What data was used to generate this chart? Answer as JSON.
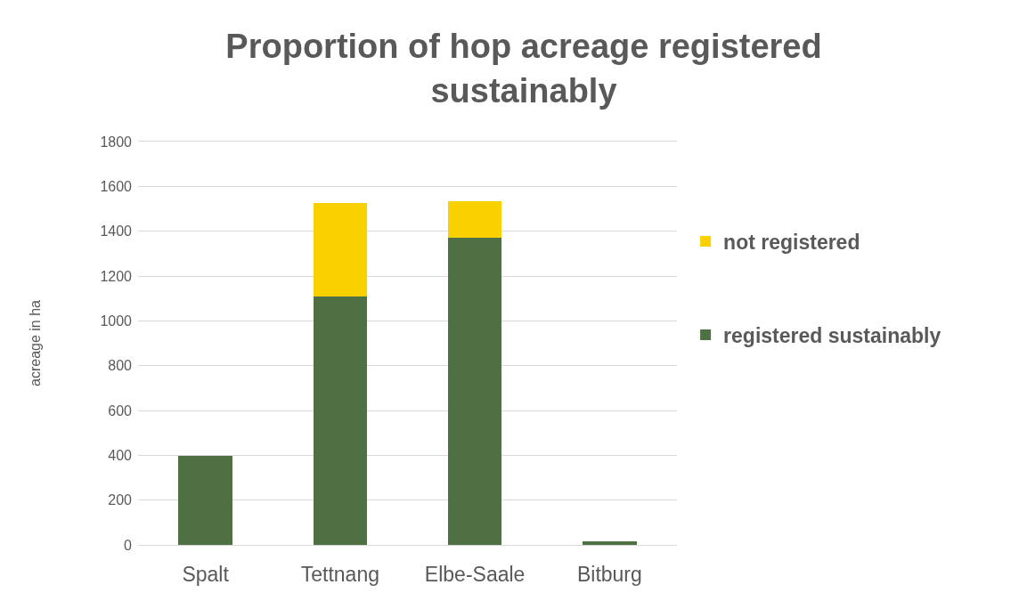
{
  "chart_data": {
    "type": "bar",
    "title": "Proportion of hop acreage registered sustainably",
    "ylabel": "acreage in ha",
    "categories": [
      "Spalt",
      "Tettnang",
      "Elbe-Saale",
      "Bitburg"
    ],
    "stacked": true,
    "series": [
      {
        "name": "registered sustainably",
        "color": "#4e7042",
        "values": [
          397,
          1107,
          1370,
          16
        ]
      },
      {
        "name": "not registered",
        "color": "#f9d000",
        "values": [
          null,
          420,
          162,
          null
        ]
      }
    ],
    "ylim": [
      0,
      1800
    ],
    "yticks": [
      0,
      200,
      400,
      600,
      800,
      1000,
      1200,
      1400,
      1600,
      1800
    ],
    "grid": "y",
    "legend": "right"
  }
}
